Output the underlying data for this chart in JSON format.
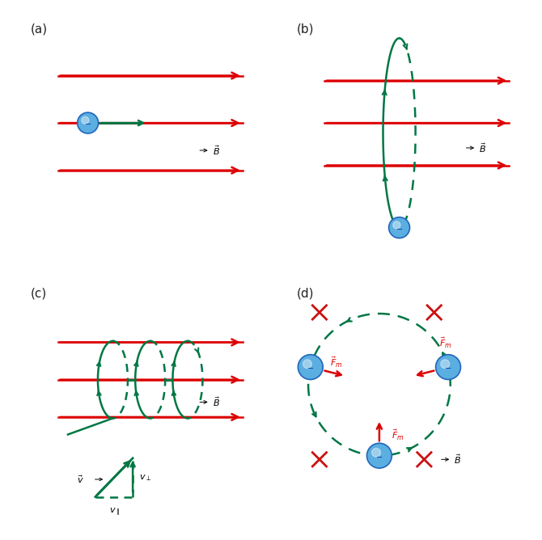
{
  "red_color": "#DD0000",
  "green_color": "#007744",
  "blue_light": "#5BAEE0",
  "blue_dark": "#2266BB",
  "bg_color": "#FFFFFF",
  "label_color": "#222222",
  "minus_color": "#0033AA",
  "cross_color": "#CC1111",
  "panel_labels": [
    "(a)",
    "(b)",
    "(c)",
    "(d)"
  ]
}
